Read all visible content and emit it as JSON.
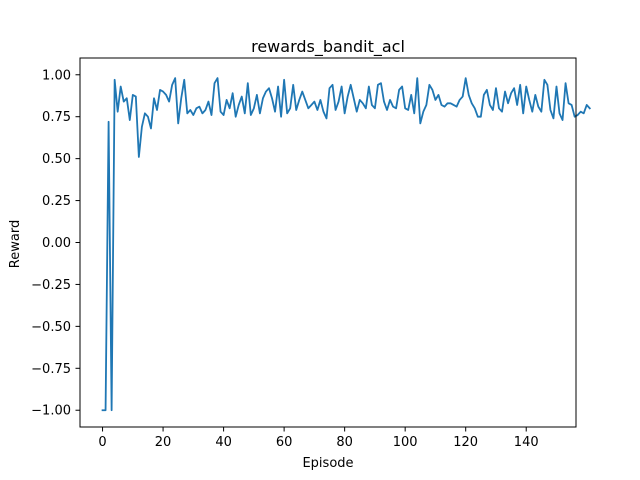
{
  "chart_data": {
    "type": "line",
    "title": "rewards_bandit_acl",
    "xlabel": "Episode",
    "ylabel": "Reward",
    "xlim": [
      -7.45,
      156.45
    ],
    "ylim": [
      -1.1,
      1.1
    ],
    "xticks": [
      0,
      20,
      40,
      60,
      80,
      100,
      120,
      140
    ],
    "xtick_labels": [
      "0",
      "20",
      "40",
      "60",
      "80",
      "100",
      "120",
      "140"
    ],
    "yticks": [
      -1.0,
      -0.75,
      -0.5,
      -0.25,
      0.0,
      0.25,
      0.5,
      0.75,
      1.0
    ],
    "ytick_labels": [
      "−1.00",
      "−0.75",
      "−0.50",
      "−0.25",
      "0.00",
      "0.25",
      "0.50",
      "0.75",
      "1.00"
    ],
    "grid": false,
    "line_color": "#1f77b4",
    "series": [
      {
        "values": [
          -1.0,
          -1.0,
          0.72,
          -1.0,
          0.97,
          0.78,
          0.93,
          0.84,
          0.86,
          0.73,
          0.88,
          0.87,
          0.51,
          0.69,
          0.77,
          0.75,
          0.68,
          0.86,
          0.79,
          0.91,
          0.9,
          0.88,
          0.84,
          0.94,
          0.98,
          0.71,
          0.86,
          0.97,
          0.77,
          0.79,
          0.76,
          0.8,
          0.81,
          0.77,
          0.79,
          0.84,
          0.76,
          0.95,
          0.98,
          0.78,
          0.76,
          0.85,
          0.8,
          0.89,
          0.75,
          0.82,
          0.87,
          0.77,
          0.95,
          0.76,
          0.8,
          0.88,
          0.77,
          0.86,
          0.9,
          0.92,
          0.86,
          0.78,
          0.93,
          0.75,
          0.97,
          0.77,
          0.8,
          0.94,
          0.79,
          0.85,
          0.9,
          0.85,
          0.8,
          0.82,
          0.84,
          0.79,
          0.85,
          0.78,
          0.74,
          0.92,
          0.94,
          0.79,
          0.84,
          0.93,
          0.77,
          0.87,
          0.94,
          0.86,
          0.78,
          0.85,
          0.83,
          0.8,
          0.93,
          0.82,
          0.8,
          0.94,
          0.95,
          0.84,
          0.79,
          0.85,
          0.81,
          0.8,
          0.91,
          0.93,
          0.8,
          0.79,
          0.88,
          0.77,
          0.98,
          0.71,
          0.78,
          0.82,
          0.94,
          0.91,
          0.85,
          0.88,
          0.82,
          0.81,
          0.83,
          0.83,
          0.82,
          0.81,
          0.85,
          0.87,
          0.98,
          0.88,
          0.83,
          0.8,
          0.75,
          0.75,
          0.88,
          0.91,
          0.82,
          0.79,
          0.92,
          0.8,
          0.78,
          0.9,
          0.83,
          0.89,
          0.92,
          0.82,
          0.94,
          0.77,
          0.93,
          0.85,
          0.78,
          0.88,
          0.81,
          0.78,
          0.97,
          0.94,
          0.79,
          0.74,
          0.93,
          0.77,
          0.73,
          0.95,
          0.83,
          0.82,
          0.75,
          0.76,
          0.78,
          0.77,
          0.82,
          0.8
        ]
      }
    ]
  }
}
